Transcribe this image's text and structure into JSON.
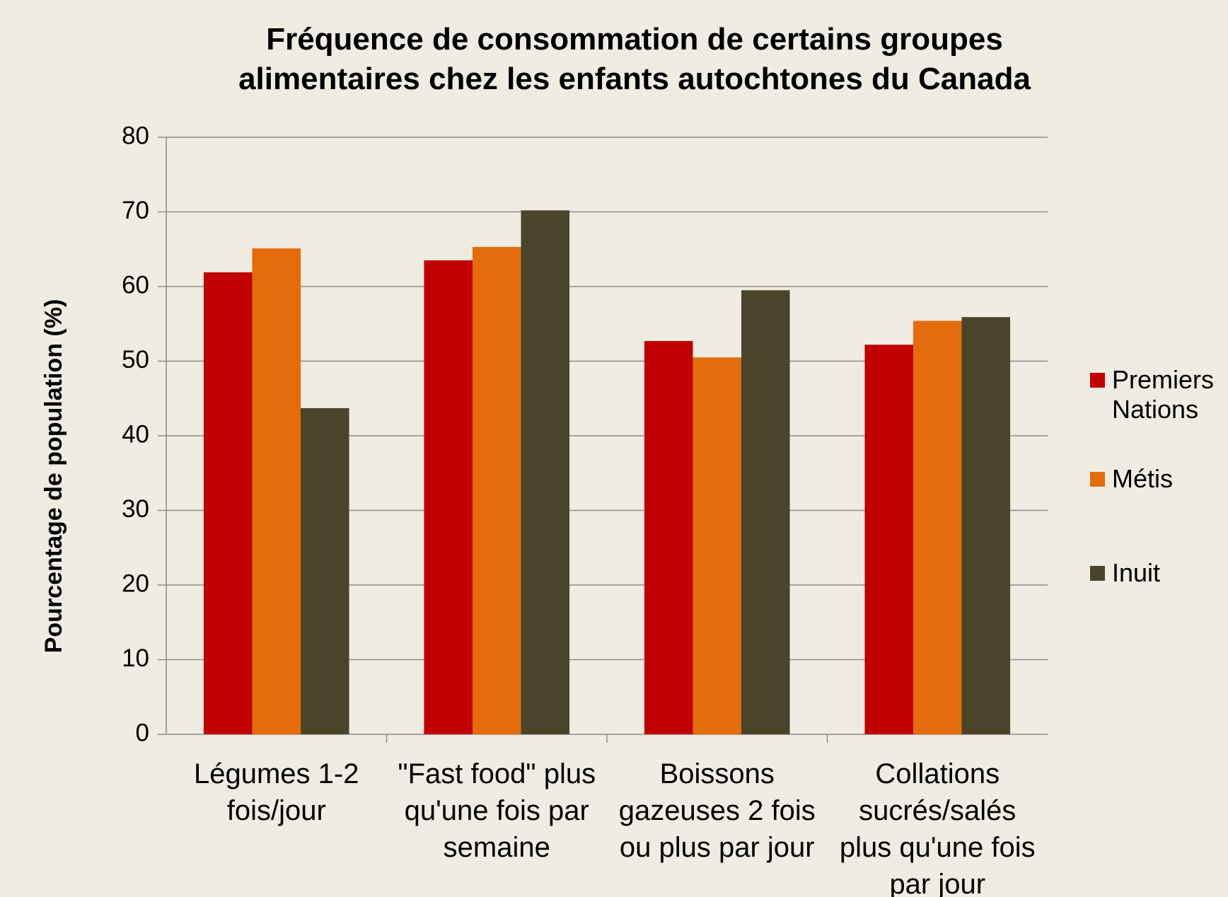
{
  "chart_data": {
    "type": "bar",
    "title": "Fréquence de consommation de certains groupes alimentaires  chez les enfants autochtones du Canada",
    "y_label": "Pourcentage de population (%)",
    "categories": [
      "Légumes 1-2 fois/jour",
      "\"Fast food\" plus qu'une fois par semaine",
      "Boissons gazeuses 2 fois ou plus par jour",
      "Collations sucrés/salés plus qu'une fois par jour"
    ],
    "series": [
      {
        "name": "Premiers Nations",
        "color": "#c00000",
        "values": [
          61.9,
          63.5,
          52.7,
          52.2
        ]
      },
      {
        "name": "Métis",
        "color": "#e46c0a",
        "values": [
          65.1,
          65.3,
          50.5,
          55.4
        ]
      },
      {
        "name": "Inuit",
        "color": "#4a452a",
        "values": [
          43.7,
          70.2,
          59.5,
          55.9
        ]
      }
    ],
    "ylim": [
      0,
      80
    ],
    "yticks": [
      0,
      10,
      20,
      30,
      40,
      50,
      60,
      70,
      80
    ],
    "grid": true,
    "legend": "right"
  }
}
